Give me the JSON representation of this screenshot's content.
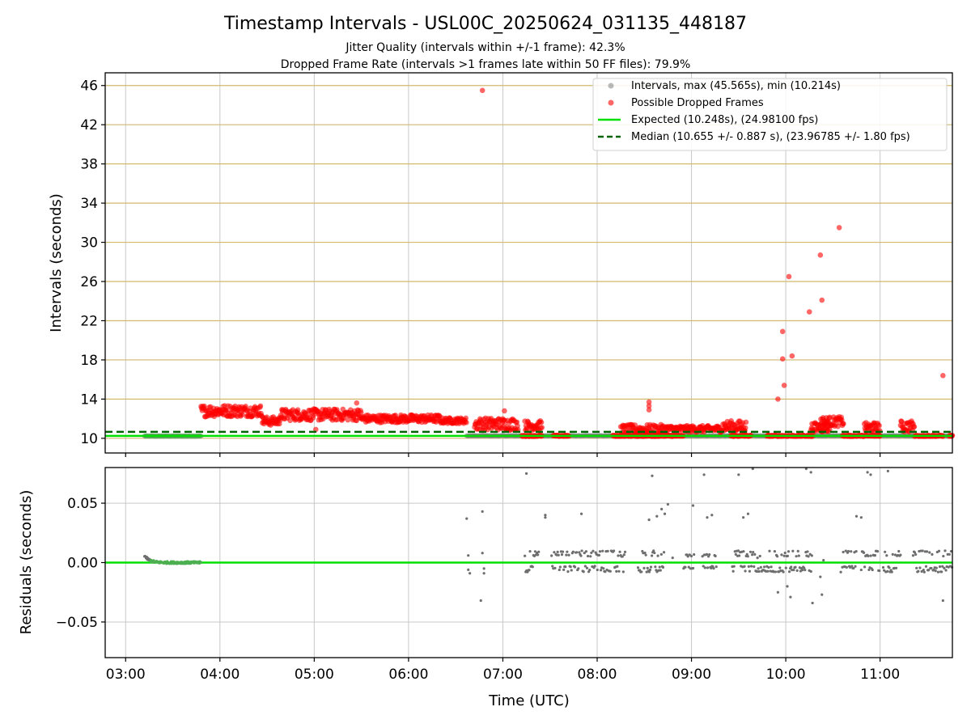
{
  "header": {
    "title": "Timestamp Intervals - USL00C_20250624_031135_448187",
    "subtitle_1": "Jitter Quality (intervals within +/-1 frame): 42.3%",
    "subtitle_2": "Dropped Frame Rate (intervals >1 frames late within 50 FF files): 79.9%"
  },
  "colors": {
    "intervals": "#808080",
    "dropped": "#ff0000",
    "expected": "#00e000",
    "median": "#006400",
    "hgrid": "#d2b96e",
    "vgrid": "#c8c8c8"
  },
  "chart_data": [
    {
      "type": "scatter",
      "ylabel": "Intervals (seconds)",
      "xlabel": "",
      "xlim": [
        "02:47",
        "11:46"
      ],
      "ylim": [
        8.5,
        47.3
      ],
      "y_ticks": [
        10,
        14,
        18,
        22,
        26,
        30,
        34,
        38,
        42,
        46
      ],
      "y_tick_labels": [
        "10",
        "14",
        "18",
        "22",
        "26",
        "30",
        "34",
        "38",
        "42",
        "46"
      ],
      "grid": "on",
      "legend_position": "top-right",
      "legend": [
        "Intervals, max (45.565s), min (10.214s)",
        "Possible Dropped Frames",
        "Expected (10.248s), (24.98100 fps)",
        "Median (10.655 +/- 0.887 s), (23.96785 +/- 1.80 fps)"
      ],
      "reference_lines": [
        {
          "name": "Expected (10.248s), (24.98100 fps)",
          "y": 10.248,
          "style": "solid"
        },
        {
          "name": "Median (10.655 +/- 0.887 s), (23.96785 +/- 1.80 fps)",
          "y": 10.655,
          "style": "dashed"
        }
      ],
      "series": [
        {
          "name": "Intervals, max (45.565s), min (10.214s)",
          "segments": [
            {
              "x_start": "03:12",
              "x_end": "03:48",
              "y": 10.22
            },
            {
              "x_start": "06:37",
              "x_end": "11:46",
              "y": 10.25
            }
          ]
        },
        {
          "name": "Possible Dropped Frames",
          "bands": [
            {
              "x_start": "03:48",
              "x_end": "04:27",
              "y_low": 12.2,
              "y_high": 13.4
            },
            {
              "x_start": "04:27",
              "x_end": "04:38",
              "y_low": 11.3,
              "y_high": 12.2
            },
            {
              "x_start": "04:38",
              "x_end": "05:30",
              "y_low": 11.8,
              "y_high": 13.0
            },
            {
              "x_start": "05:30",
              "x_end": "06:20",
              "y_low": 11.6,
              "y_high": 12.4
            },
            {
              "x_start": "06:20",
              "x_end": "06:37",
              "y_low": 11.5,
              "y_high": 12.1
            },
            {
              "x_start": "06:42",
              "x_end": "07:10",
              "y_low": 10.8,
              "y_high": 12.1
            },
            {
              "x_start": "07:14",
              "x_end": "07:25",
              "y_low": 10.8,
              "y_high": 11.8
            },
            {
              "x_start": "08:15",
              "x_end": "08:45",
              "y_low": 10.4,
              "y_high": 11.4
            },
            {
              "x_start": "08:45",
              "x_end": "09:20",
              "y_low": 10.6,
              "y_high": 11.3
            },
            {
              "x_start": "09:20",
              "x_end": "09:35",
              "y_low": 10.6,
              "y_high": 11.8
            },
            {
              "x_start": "10:16",
              "x_end": "10:28",
              "y_low": 10.6,
              "y_high": 11.6
            },
            {
              "x_start": "10:22",
              "x_end": "10:37",
              "y_low": 11.2,
              "y_high": 12.2
            },
            {
              "x_start": "10:50",
              "x_end": "11:00",
              "y_low": 10.6,
              "y_high": 11.6
            },
            {
              "x_start": "11:13",
              "x_end": "11:22",
              "y_low": 10.6,
              "y_high": 11.8
            }
          ],
          "floor_runs": [
            {
              "x_start": "07:12",
              "x_end": "07:25",
              "y": 10.25
            },
            {
              "x_start": "07:32",
              "x_end": "07:42",
              "y": 10.25
            },
            {
              "x_start": "08:10",
              "x_end": "08:55",
              "y": 10.25
            },
            {
              "x_start": "09:25",
              "x_end": "09:38",
              "y": 10.25
            },
            {
              "x_start": "09:48",
              "x_end": "10:17",
              "y": 10.25
            },
            {
              "x_start": "10:36",
              "x_end": "11:00",
              "y": 10.25
            },
            {
              "x_start": "11:22",
              "x_end": "11:40",
              "y": 10.25
            },
            {
              "x_start": "11:44",
              "x_end": "11:46",
              "y": 10.25
            }
          ],
          "points": [
            {
              "x": "06:47",
              "y": 45.5
            },
            {
              "x": "09:55",
              "y": 14.0
            },
            {
              "x": "09:58",
              "y": 18.1
            },
            {
              "x": "09:58",
              "y": 20.9
            },
            {
              "x": "09:59",
              "y": 15.4
            },
            {
              "x": "10:02",
              "y": 26.5
            },
            {
              "x": "10:04",
              "y": 18.4
            },
            {
              "x": "10:15",
              "y": 22.9
            },
            {
              "x": "10:22",
              "y": 28.7
            },
            {
              "x": "10:23",
              "y": 24.1
            },
            {
              "x": "10:34",
              "y": 31.5
            },
            {
              "x": "11:40",
              "y": 16.4
            },
            {
              "x": "08:33",
              "y": 13.7
            },
            {
              "x": "08:33",
              "y": 13.3
            },
            {
              "x": "08:33",
              "y": 12.9
            },
            {
              "x": "05:27",
              "y": 13.6
            },
            {
              "x": "07:01",
              "y": 12.8
            },
            {
              "x": "05:01",
              "y": 10.9
            }
          ]
        }
      ]
    },
    {
      "type": "scatter",
      "ylabel": "Residuals (seconds)",
      "xlabel": "Time (UTC)",
      "xlim": [
        "02:47",
        "11:46"
      ],
      "ylim": [
        -0.08,
        0.08
      ],
      "y_ticks": [
        -0.05,
        0.0,
        0.05
      ],
      "y_tick_labels": [
        "−0.05",
        "0.00",
        "0.05"
      ],
      "x_ticks": [
        "03:00",
        "04:00",
        "05:00",
        "06:00",
        "07:00",
        "08:00",
        "09:00",
        "10:00",
        "11:00"
      ],
      "grid": "on",
      "reference_lines": [
        {
          "name": "Expected (10.248s), (24.98100 fps)",
          "y": 0.0,
          "style": "solid"
        }
      ],
      "series": [
        {
          "name": "Residuals",
          "bands": [
            {
              "x_start": "07:14",
              "x_end": "07:23",
              "levels": [
                0.009,
                0.006,
                -0.004,
                -0.007
              ]
            },
            {
              "x_start": "07:31",
              "x_end": "08:18",
              "levels": [
                0.009,
                0.006,
                -0.004,
                -0.007
              ]
            },
            {
              "x_start": "08:26",
              "x_end": "08:43",
              "levels": [
                0.009,
                0.006,
                -0.004,
                -0.007
              ]
            },
            {
              "x_start": "08:55",
              "x_end": "09:02",
              "levels": [
                0.006,
                -0.004
              ]
            },
            {
              "x_start": "09:07",
              "x_end": "09:16",
              "levels": [
                0.006,
                -0.004
              ]
            },
            {
              "x_start": "09:26",
              "x_end": "10:17",
              "levels": [
                0.009,
                0.006,
                -0.004,
                -0.007
              ]
            },
            {
              "x_start": "10:36",
              "x_end": "10:45",
              "levels": [
                0.009,
                -0.004
              ]
            },
            {
              "x_start": "10:48",
              "x_end": "11:00",
              "levels": [
                0.009,
                0.006,
                -0.004,
                -0.007
              ]
            },
            {
              "x_start": "11:02",
              "x_end": "11:13",
              "levels": [
                0.009,
                0.006,
                -0.004,
                -0.007
              ]
            },
            {
              "x_start": "11:21",
              "x_end": "11:46",
              "levels": [
                0.009,
                0.006,
                -0.004,
                -0.007
              ]
            }
          ],
          "points": [
            {
              "x": "06:37",
              "y": 0.037
            },
            {
              "x": "06:38",
              "y": 0.006
            },
            {
              "x": "06:38",
              "y": -0.006
            },
            {
              "x": "06:39",
              "y": -0.009
            },
            {
              "x": "06:47",
              "y": 0.043
            },
            {
              "x": "06:47",
              "y": 0.008
            },
            {
              "x": "06:48",
              "y": -0.005
            },
            {
              "x": "06:48",
              "y": -0.009
            },
            {
              "x": "06:46",
              "y": -0.032
            },
            {
              "x": "07:15",
              "y": 0.075
            },
            {
              "x": "07:27",
              "y": 0.04
            },
            {
              "x": "07:27",
              "y": 0.038
            },
            {
              "x": "07:50",
              "y": 0.041
            },
            {
              "x": "08:35",
              "y": 0.073
            },
            {
              "x": "08:33",
              "y": 0.036
            },
            {
              "x": "08:38",
              "y": 0.039
            },
            {
              "x": "08:41",
              "y": 0.045
            },
            {
              "x": "08:43",
              "y": 0.041
            },
            {
              "x": "08:45",
              "y": 0.049
            },
            {
              "x": "09:01",
              "y": 0.048
            },
            {
              "x": "09:08",
              "y": 0.074
            },
            {
              "x": "09:10",
              "y": 0.038
            },
            {
              "x": "09:13",
              "y": 0.04
            },
            {
              "x": "09:30",
              "y": 0.074
            },
            {
              "x": "09:36",
              "y": 0.041
            },
            {
              "x": "09:39",
              "y": 0.079
            },
            {
              "x": "09:33",
              "y": 0.038
            },
            {
              "x": "09:55",
              "y": -0.025
            },
            {
              "x": "10:01",
              "y": -0.02
            },
            {
              "x": "10:03",
              "y": -0.029
            },
            {
              "x": "10:13",
              "y": 0.079
            },
            {
              "x": "10:16",
              "y": 0.076
            },
            {
              "x": "10:17",
              "y": -0.034
            },
            {
              "x": "10:22",
              "y": -0.012
            },
            {
              "x": "10:23",
              "y": -0.027
            },
            {
              "x": "10:24",
              "y": 0.002
            },
            {
              "x": "10:35",
              "y": -0.008
            },
            {
              "x": "10:45",
              "y": 0.039
            },
            {
              "x": "10:48",
              "y": 0.038
            },
            {
              "x": "10:52",
              "y": 0.076
            },
            {
              "x": "10:54",
              "y": 0.074
            },
            {
              "x": "11:05",
              "y": 0.077
            },
            {
              "x": "11:40",
              "y": -0.032
            },
            {
              "x": "08:48",
              "y": 0.004
            },
            {
              "x": "09:42",
              "y": 0.004
            }
          ],
          "startup_curve": {
            "x_start": "03:12",
            "x_end": "03:48",
            "y_start": 0.006,
            "y_end": 0.0
          }
        }
      ]
    }
  ]
}
